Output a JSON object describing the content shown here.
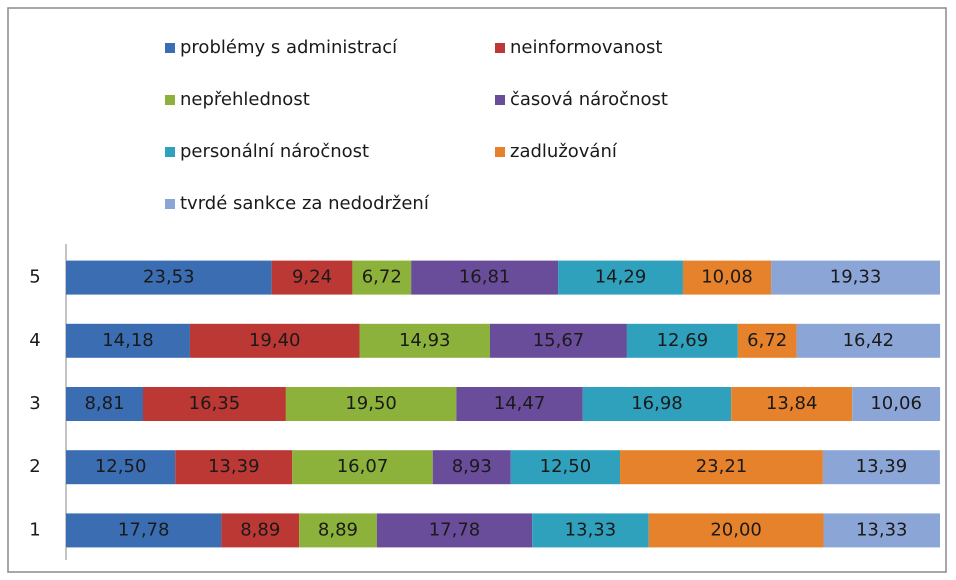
{
  "chart_data": {
    "type": "stacked-bar-horizontal",
    "categories": [
      "1",
      "2",
      "3",
      "4",
      "5"
    ],
    "xlim": [
      0,
      100
    ],
    "legend": "top",
    "series": [
      {
        "name": "problémy s administrací",
        "color": "#3b6db3",
        "values": [
          17.78,
          12.5,
          8.81,
          14.18,
          23.53
        ],
        "value_labels": [
          "17,78",
          "12,50",
          "8,81",
          "14,18",
          "23,53"
        ]
      },
      {
        "name": "neinformovanost",
        "color": "#bc3834",
        "values": [
          8.89,
          13.39,
          16.35,
          19.4,
          9.24
        ],
        "value_labels": [
          "8,89",
          "13,39",
          "16,35",
          "19,40",
          "9,24"
        ]
      },
      {
        "name": "nepřehlednost",
        "color": "#8cb23c",
        "values": [
          8.89,
          16.07,
          19.5,
          14.93,
          6.72
        ],
        "value_labels": [
          "8,89",
          "16,07",
          "19,50",
          "14,93",
          "6,72"
        ]
      },
      {
        "name": "časová náročnost",
        "color": "#6a4d9a",
        "values": [
          17.78,
          8.93,
          14.47,
          15.67,
          16.81
        ],
        "value_labels": [
          "17,78",
          "8,93",
          "14,47",
          "15,67",
          "16,81"
        ]
      },
      {
        "name": "personální náročnost",
        "color": "#2fa1bd",
        "values": [
          13.33,
          12.5,
          16.98,
          12.69,
          14.29
        ],
        "value_labels": [
          "13,33",
          "12,50",
          "16,98",
          "12,69",
          "14,29"
        ]
      },
      {
        "name": "zadlužování",
        "color": "#e6822b",
        "values": [
          20.0,
          23.21,
          13.84,
          6.72,
          10.08
        ],
        "value_labels": [
          "20,00",
          "23,21",
          "13,84",
          "6,72",
          "10,08"
        ]
      },
      {
        "name": "tvrdé sankce za nedodržení",
        "color": "#8ba6d6",
        "values": [
          13.33,
          13.39,
          10.06,
          16.42,
          19.33
        ],
        "value_labels": [
          "13,33",
          "13,39",
          "10,06",
          "16,42",
          "19,33"
        ]
      }
    ]
  }
}
